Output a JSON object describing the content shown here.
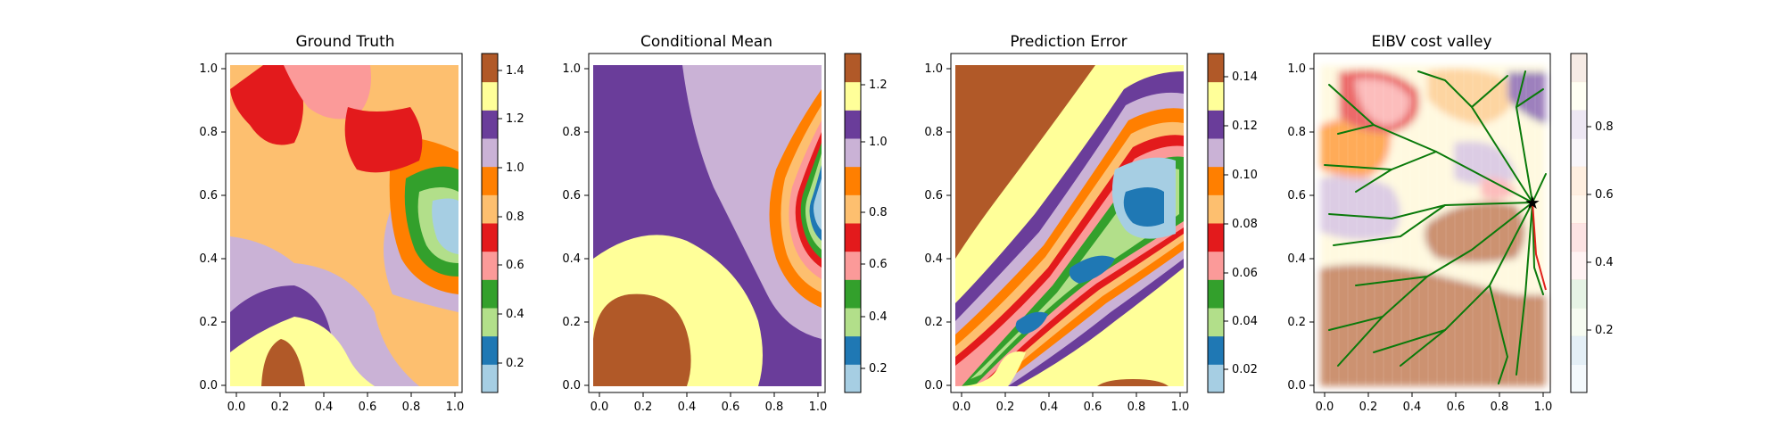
{
  "chart_data": [
    {
      "type": "heatmap",
      "title": "Ground Truth",
      "xlim": [
        0.0,
        1.0
      ],
      "ylim": [
        0.0,
        1.0
      ],
      "x_ticks": [
        "0.0",
        "0.2",
        "0.4",
        "0.6",
        "0.8",
        "1.0"
      ],
      "y_ticks": [
        "0.0",
        "0.2",
        "0.4",
        "0.6",
        "0.8",
        "1.0"
      ],
      "colorbar": {
        "range": [
          0.0,
          1.5
        ],
        "ticks": [
          "0.2",
          "0.4",
          "0.6",
          "0.8",
          "1.0",
          "1.2",
          "1.4"
        ]
      }
    },
    {
      "type": "heatmap",
      "title": "Conditional Mean",
      "xlim": [
        0.0,
        1.0
      ],
      "ylim": [
        0.0,
        1.0
      ],
      "x_ticks": [
        "0.0",
        "0.2",
        "0.4",
        "0.6",
        "0.8",
        "1.0"
      ],
      "y_ticks": [
        "0.0",
        "0.2",
        "0.4",
        "0.6",
        "0.8",
        "1.0"
      ],
      "colorbar": {
        "range": [
          0.05,
          1.35
        ],
        "ticks": [
          "0.2",
          "0.4",
          "0.6",
          "0.8",
          "1.0",
          "1.2"
        ]
      }
    },
    {
      "type": "heatmap",
      "title": "Prediction Error",
      "xlim": [
        0.0,
        1.0
      ],
      "ylim": [
        0.0,
        1.0
      ],
      "x_ticks": [
        "0.0",
        "0.2",
        "0.4",
        "0.6",
        "0.8",
        "1.0"
      ],
      "y_ticks": [
        "0.0",
        "0.2",
        "0.4",
        "0.6",
        "0.8",
        "1.0"
      ],
      "colorbar": {
        "range": [
          0.01,
          0.15
        ],
        "ticks": [
          "0.02",
          "0.04",
          "0.06",
          "0.08",
          "0.10",
          "0.12",
          "0.14"
        ]
      }
    },
    {
      "type": "heatmap",
      "title": "EIBV cost valley",
      "xlim": [
        0.0,
        1.0
      ],
      "ylim": [
        0.0,
        1.0
      ],
      "x_ticks": [
        "0.0",
        "0.2",
        "0.4",
        "0.6",
        "0.8",
        "1.0"
      ],
      "y_ticks": [
        "0.0",
        "0.2",
        "0.4",
        "0.6",
        "0.8",
        "1.0"
      ],
      "colorbar": {
        "range": [
          0.0,
          1.0
        ],
        "ticks": [
          "0.2",
          "0.4",
          "0.6",
          "0.8"
        ]
      },
      "current_location": [
        0.95,
        0.57
      ],
      "tree_color": "#0a7a0a",
      "path_color": "#e0201a"
    }
  ],
  "colors": {
    "paired": [
      "#a6cee3",
      "#1f78b4",
      "#b2df8a",
      "#33a02c",
      "#fb9a99",
      "#e31a1c",
      "#fdbf6f",
      "#ff7f00",
      "#cab2d6",
      "#6a3d9a",
      "#ffff99",
      "#b15928"
    ]
  }
}
